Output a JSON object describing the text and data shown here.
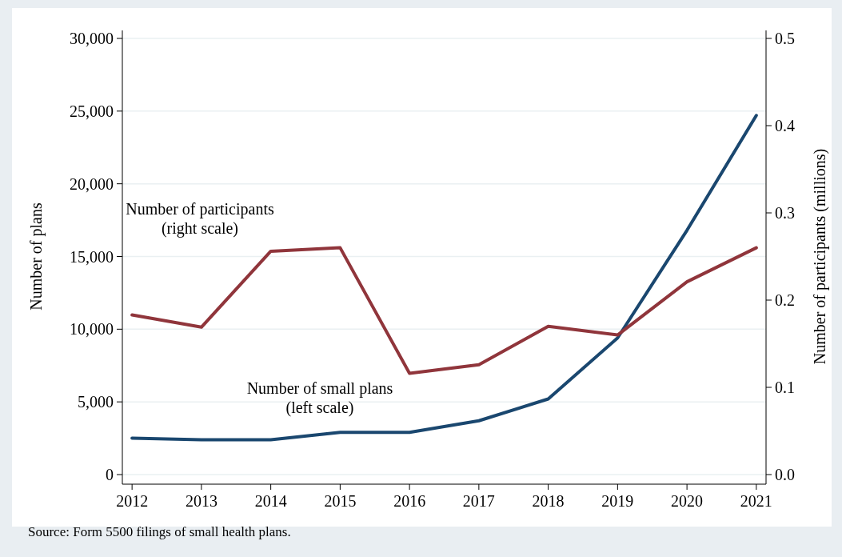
{
  "chart_data": {
    "type": "line",
    "categories": [
      "2012",
      "2013",
      "2014",
      "2015",
      "2016",
      "2017",
      "2018",
      "2019",
      "2020",
      "2021"
    ],
    "series": [
      {
        "name": "Number of small plans (left scale)",
        "color": "#1a476f",
        "values": [
          2500,
          2400,
          2400,
          2900,
          2900,
          3700,
          5200,
          9400,
          16800,
          24700
        ]
      },
      {
        "name": "Number of participants (right scale)",
        "color": "#90353b",
        "axis": "y2",
        "values": [
          0.183,
          0.169,
          0.256,
          0.26,
          0.116,
          0.126,
          0.17,
          0.16,
          0.221,
          0.26
        ]
      }
    ],
    "ylabel": "Number of plans",
    "y2label": "Number of participants (millions)",
    "ylim": [
      0,
      30000
    ],
    "yticks": [
      0,
      {
        "value": 5000,
        "label": "5,000"
      },
      {
        "value": 10000,
        "label": "10,000"
      },
      {
        "value": 15000,
        "label": "15,000"
      },
      {
        "value": 20000,
        "label": "20,000"
      },
      {
        "value": 25000,
        "label": "25,000"
      },
      {
        "value": 30000,
        "label": "30,000"
      }
    ],
    "y2lim": [
      0,
      0.5
    ],
    "y2ticks": [
      {
        "value": 0,
        "label": "0.0"
      },
      0.1,
      0.2,
      0.3,
      0.4,
      0.5
    ],
    "grid": "y",
    "marker": "none",
    "line_style": "solid",
    "annotations": [
      "Source: Form 5500 filings of small health plans."
    ]
  }
}
